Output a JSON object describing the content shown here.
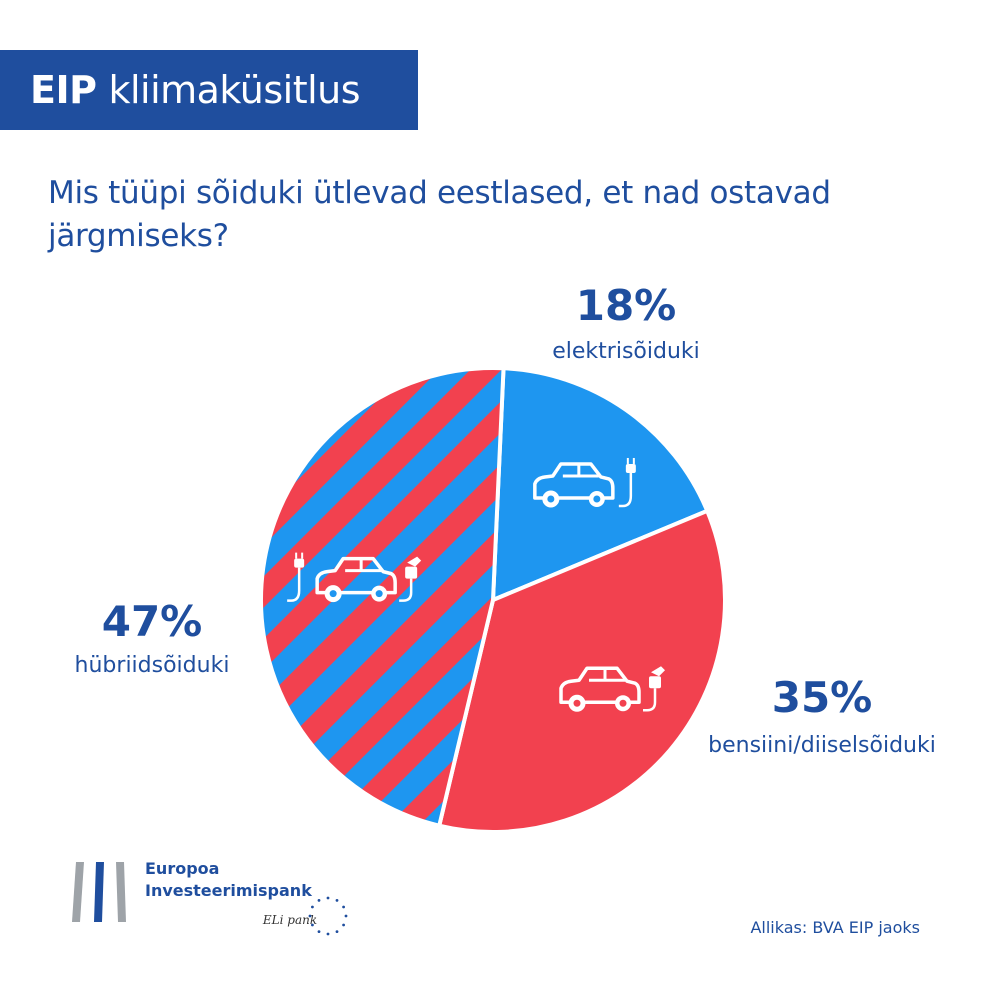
{
  "header": {
    "title_bold": "EIP",
    "title_rest": "kliimaküsitlus"
  },
  "question": "Mis tüüpi sõiduki ütlevad eestlased, et nad ostavad järgmiseks?",
  "chart_data": {
    "type": "pie",
    "slices": [
      {
        "label": "elektrisõiduki",
        "value": 18,
        "display": "18%",
        "color": "#1e96f0",
        "pattern": "solid",
        "icon": "electric-car-icon"
      },
      {
        "label": "bensiini/diiselsõiduki",
        "value": 35,
        "display": "35%",
        "color": "#f2414f",
        "pattern": "solid",
        "icon": "fuel-car-icon"
      },
      {
        "label": "hübriidsõiduki",
        "value": 47,
        "display": "47%",
        "color": "#f2414f",
        "color2": "#1e96f0",
        "pattern": "stripes",
        "icon": "hybrid-car-icon"
      }
    ],
    "start_angle_deg": 2.6,
    "legend": "none"
  },
  "logo": {
    "line1": "Europoa",
    "line2": "Investeerimispank",
    "signature": "ELi pank",
    "bar_colors": [
      "#9ea3a8",
      "#1f4e9e",
      "#9ea3a8"
    ]
  },
  "source": "Allikas: BVA EIP jaoks",
  "colors": {
    "brand": "#1f4e9e",
    "blue": "#1e96f0",
    "red": "#f2414f"
  }
}
